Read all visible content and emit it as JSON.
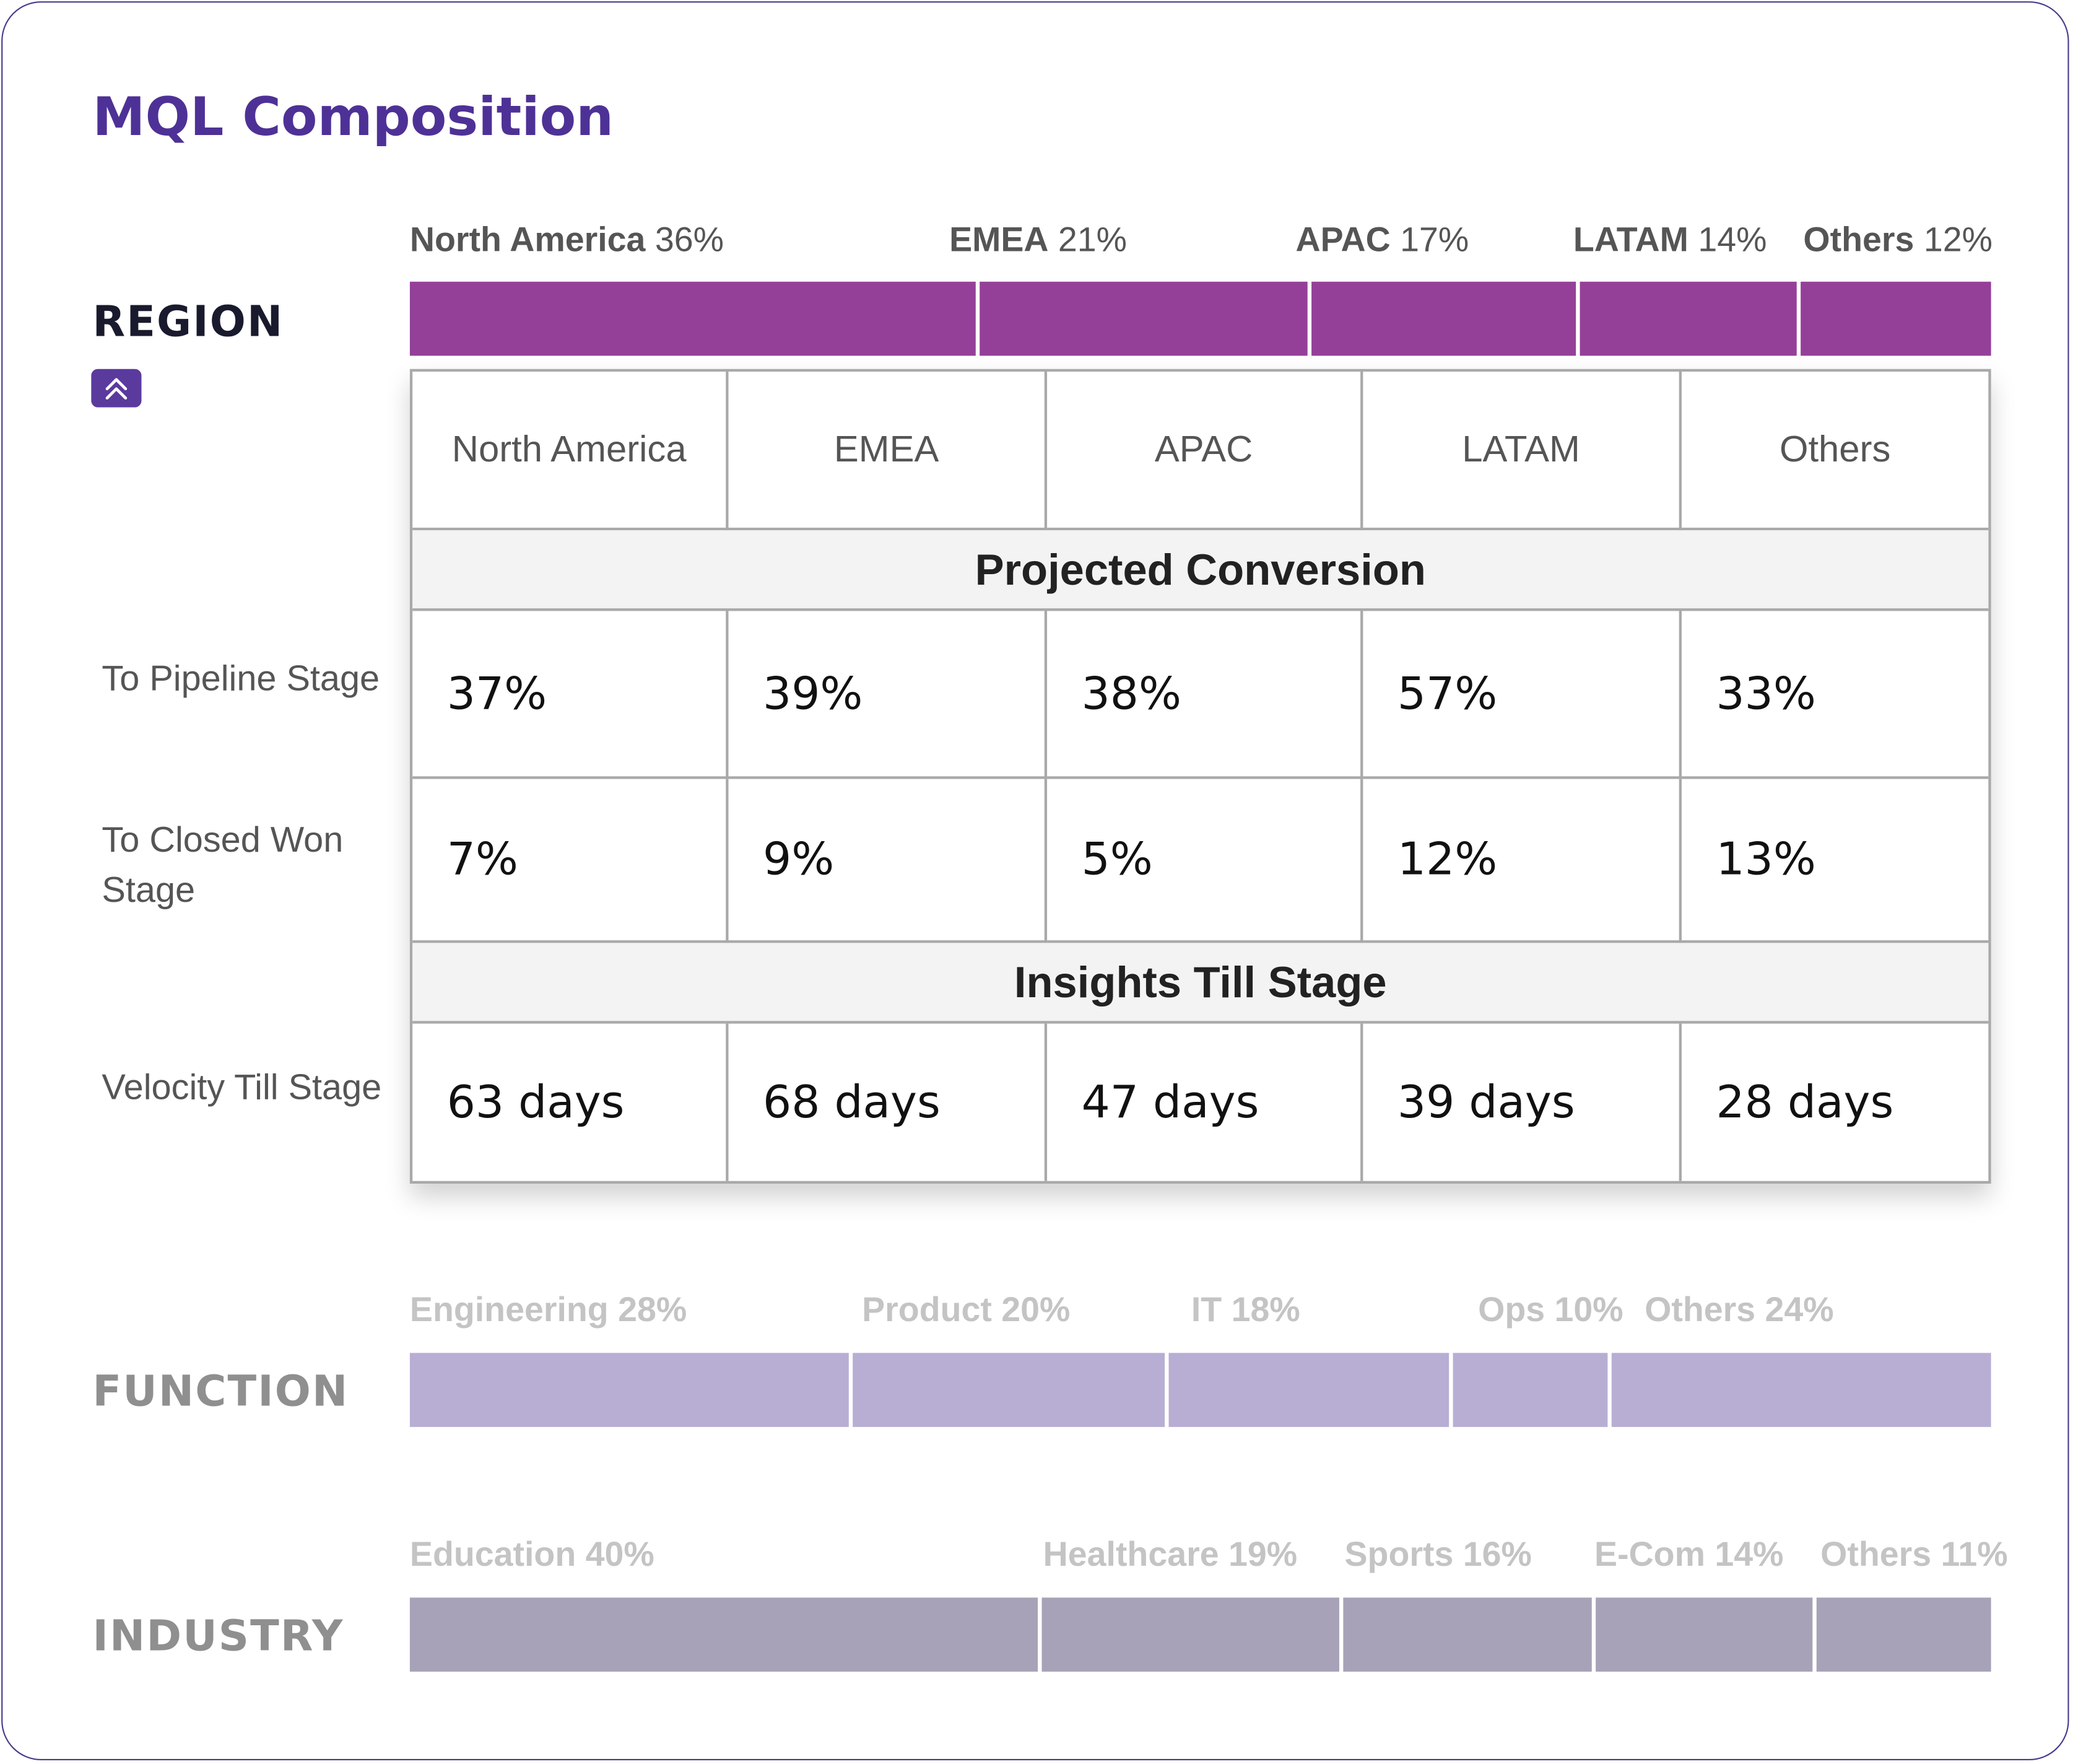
{
  "title": "MQL Composition",
  "colors": {
    "region": "#944099",
    "function": "#b8aed4",
    "industry": "#a7a2b8",
    "accent": "#4e3196"
  },
  "icons": {
    "collapse": "chevron-double-up-icon"
  },
  "region": {
    "label": "REGION",
    "segments": [
      {
        "name": "North America",
        "pct": "36%",
        "value": 36
      },
      {
        "name": "EMEA",
        "pct": "21%",
        "value": 21
      },
      {
        "name": "APAC",
        "pct": "17%",
        "value": 17
      },
      {
        "name": "LATAM",
        "pct": "14%",
        "value": 14
      },
      {
        "name": "Others",
        "pct": "12%",
        "value": 12
      }
    ]
  },
  "table": {
    "columns": [
      "North America",
      "EMEA",
      "APAC",
      "LATAM",
      "Others"
    ],
    "projected_header": "Projected Conversion",
    "insights_header": "Insights Till Stage",
    "rows": {
      "pipeline": {
        "label": "To Pipeline Stage",
        "values": [
          "37%",
          "39%",
          "38%",
          "57%",
          "33%"
        ]
      },
      "closed_won": {
        "label": "To Closed Won Stage",
        "values": [
          "7%",
          "9%",
          "5%",
          "12%",
          "13%"
        ]
      },
      "velocity": {
        "label": "Velocity Till Stage",
        "values": [
          "63 days",
          "68 days",
          "47 days",
          "39 days",
          "28 days"
        ]
      }
    }
  },
  "function": {
    "label": "FUNCTION",
    "segments": [
      {
        "label": "Engineering 28%",
        "value": 28
      },
      {
        "label": "Product 20%",
        "value": 20
      },
      {
        "label": "IT 18%",
        "value": 18
      },
      {
        "label": "Ops 10%",
        "value": 10
      },
      {
        "label": "Others 24%",
        "value": 24
      }
    ]
  },
  "industry": {
    "label": "INDUSTRY",
    "segments": [
      {
        "label": "Education 40%",
        "value": 40
      },
      {
        "label": "Healthcare 19%",
        "value": 19
      },
      {
        "label": "Sports 16%",
        "value": 16
      },
      {
        "label": "E-Com 14%",
        "value": 14
      },
      {
        "label": "Others 11%",
        "value": 11
      }
    ]
  }
}
